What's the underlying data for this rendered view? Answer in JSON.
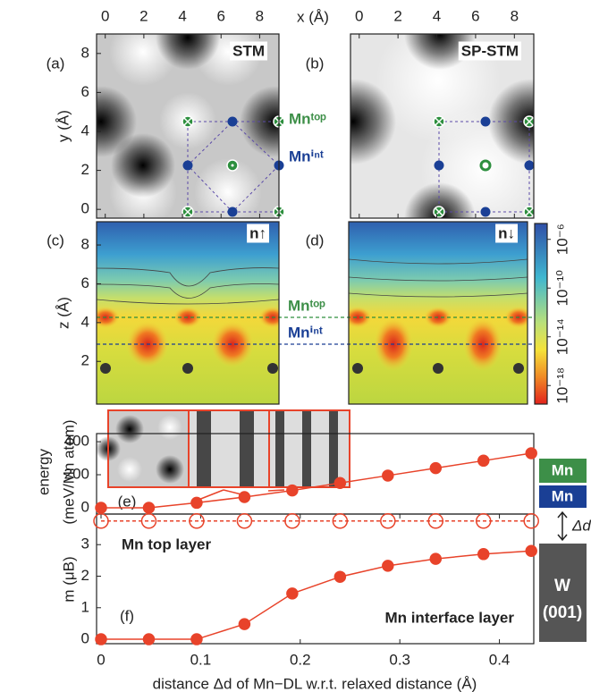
{
  "chart_data": [
    {
      "type": "image",
      "panel": "(a)",
      "tag": "STM",
      "xlabel": "x (Å)",
      "ylabel": "y (Å)",
      "xlim": [
        -0.45,
        9
      ],
      "xticks": [
        0,
        2,
        4,
        6,
        8
      ],
      "ylim": [
        -0.45,
        9
      ],
      "yticks": [
        0,
        2,
        4,
        6,
        8
      ]
    },
    {
      "type": "image",
      "panel": "(b)",
      "tag": "SP-STM",
      "xlim": [
        -0.45,
        9
      ],
      "xticks": [
        0,
        2,
        4,
        6,
        8
      ]
    },
    {
      "type": "image",
      "panel": "(c)",
      "tag": "n↑",
      "ylabel": "z (Å)",
      "ylim": [
        -0.2,
        9.2
      ],
      "yticks": [
        2,
        4,
        6,
        8
      ]
    },
    {
      "type": "image",
      "panel": "(d)",
      "tag": "n↓"
    },
    {
      "type": "colorbar",
      "log": true,
      "ylim": [
        3e-20,
        2e-05
      ],
      "yticks": [
        {
          "value": 1e-18,
          "label": "10⁻¹⁸"
        },
        {
          "value": 1e-14,
          "label": "10⁻¹⁴"
        },
        {
          "value": 1e-10,
          "label": "10⁻¹⁰"
        },
        {
          "value": 1e-06,
          "label": "10⁻⁶"
        }
      ]
    },
    {
      "type": "line",
      "panel": "(e)",
      "ylabel": [
        "energy",
        "(meV/Mn atom)"
      ],
      "xlim": [
        -0.0045,
        0.4345
      ],
      "ylim": [
        -38,
        449
      ],
      "yticks": [
        0,
        200,
        400
      ],
      "x": [
        0,
        0.048,
        0.096,
        0.144,
        0.192,
        0.24,
        0.288,
        0.336,
        0.384,
        0.432
      ],
      "series": [
        {
          "color": "#e8432a",
          "marker": "filled",
          "dashed": false,
          "values": [
            0,
            0,
            30,
            65,
            105,
            150,
            195,
            240,
            285,
            330
          ]
        }
      ]
    },
    {
      "type": "line",
      "panel": "(f)",
      "ylabel": "m (μB)",
      "xlabel": "distance Δd of Mn−DL w.r.t. relaxed distance (Å)",
      "xlim": [
        -0.0045,
        0.4345
      ],
      "xticks": [
        0,
        0.1,
        0.2,
        0.3,
        0.4
      ],
      "ylim": [
        -0.14,
        3.97
      ],
      "yticks": [
        0,
        1,
        2,
        3
      ],
      "x": [
        0,
        0.048,
        0.096,
        0.144,
        0.192,
        0.24,
        0.288,
        0.336,
        0.384,
        0.432
      ],
      "series": [
        {
          "name": "Mn top layer",
          "color": "#e8432a",
          "marker": "open",
          "dashed": true,
          "values": [
            3.75,
            3.75,
            3.75,
            3.75,
            3.75,
            3.75,
            3.75,
            3.75,
            3.75,
            3.75
          ]
        },
        {
          "name": "Mn interface layer",
          "color": "#e8432a",
          "marker": "filled",
          "dashed": false,
          "values": [
            0,
            0,
            0,
            0.48,
            1.45,
            1.98,
            2.33,
            2.55,
            2.7,
            2.8
          ]
        }
      ]
    }
  ],
  "figure": {
    "annotations": [
      "Mnᵗᵒᵖ",
      "Mnⁱⁿᵗ",
      "Mnᵗᵒᵖ",
      "Mnⁱⁿᵗ"
    ],
    "layers": {
      "top": "Mn",
      "interface": "Mn",
      "gap": "Δd",
      "substrate": [
        "W",
        "(001)"
      ]
    }
  }
}
